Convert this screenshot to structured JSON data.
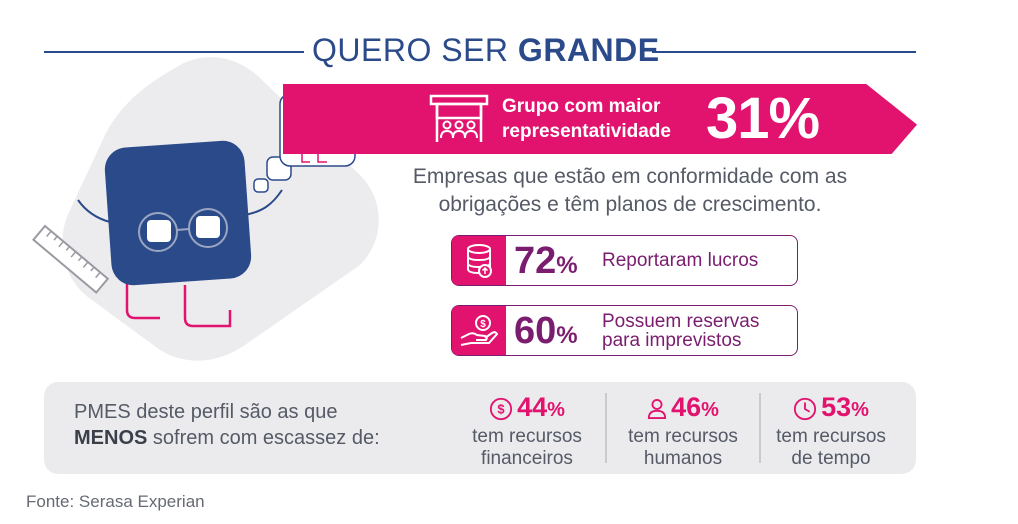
{
  "header": {
    "title_light": "QUERO SER",
    "title_bold": "GRANDE"
  },
  "highlight": {
    "icon": "people-group-store-icon",
    "label_line1": "Grupo com maior",
    "label_line2": "representatividade",
    "percent": "31%"
  },
  "description": {
    "line1": "Empresas que estão em conformidade com as",
    "line2": "obrigações e têm planos de crescimento."
  },
  "stats": [
    {
      "icon": "coins-icon",
      "value": "72",
      "unit": "%",
      "label_line1": "Reportaram lucros",
      "label_line2": ""
    },
    {
      "icon": "hand-money-icon",
      "value": "60",
      "unit": "%",
      "label_line1": "Possuem reservas",
      "label_line2": "para imprevistos"
    }
  ],
  "scarcity": {
    "line1": "PMES deste perfil são as que",
    "line2_bold": "MENOS",
    "line2_rest": " sofrem com escassez de:",
    "items": [
      {
        "icon": "dollar-circle-icon",
        "value": "44",
        "unit": "%",
        "line1": "tem recursos",
        "line2": "financeiros"
      },
      {
        "icon": "person-icon",
        "value": "46",
        "unit": "%",
        "line1": "tem recursos",
        "line2": "humanos"
      },
      {
        "icon": "clock-icon",
        "value": "53",
        "unit": "%",
        "line1": "tem recursos",
        "line2": "de tempo"
      }
    ]
  },
  "source": "Fonte: Serasa Experian",
  "colors": {
    "magenta": "#e2136e",
    "purple": "#7a1d6e",
    "navy": "#2b4a8a",
    "panel": "#ebebed"
  }
}
